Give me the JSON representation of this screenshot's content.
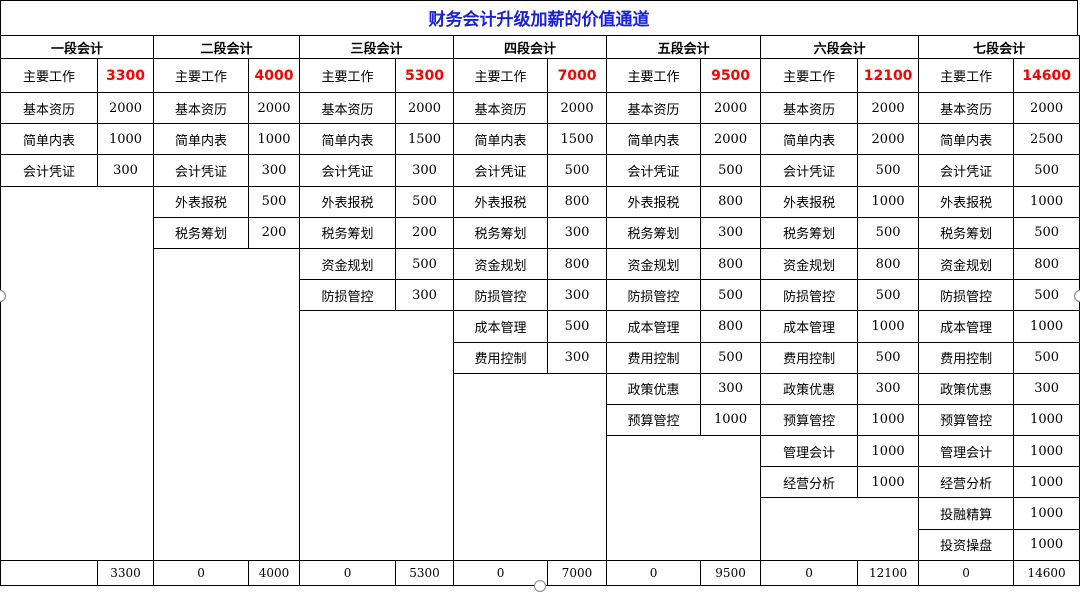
{
  "title": "财务会计升级加薪的价值通道",
  "main_label": "主要工作",
  "colors": {
    "title": "#1a22d8",
    "highlight": "#ff0000"
  },
  "groups": [
    {
      "name": "一段会计",
      "main": "3300",
      "items": [
        [
          "基本资历",
          "2000"
        ],
        [
          "简单内表",
          "1000"
        ],
        [
          "会计凭证",
          "300"
        ]
      ],
      "total_left": "",
      "total": "3300"
    },
    {
      "name": "二段会计",
      "main": "4000",
      "items": [
        [
          "基本资历",
          "2000"
        ],
        [
          "简单内表",
          "1000"
        ],
        [
          "会计凭证",
          "300"
        ],
        [
          "外表报税",
          "500"
        ],
        [
          "税务筹划",
          "200"
        ]
      ],
      "total_left": "0",
      "total": "4000"
    },
    {
      "name": "三段会计",
      "main": "5300",
      "items": [
        [
          "基本资历",
          "2000"
        ],
        [
          "简单内表",
          "1500"
        ],
        [
          "会计凭证",
          "300"
        ],
        [
          "外表报税",
          "500"
        ],
        [
          "税务筹划",
          "200"
        ],
        [
          "资金规划",
          "500"
        ],
        [
          "防损管控",
          "300"
        ]
      ],
      "total_left": "0",
      "total": "5300"
    },
    {
      "name": "四段会计",
      "main": "7000",
      "items": [
        [
          "基本资历",
          "2000"
        ],
        [
          "简单内表",
          "1500"
        ],
        [
          "会计凭证",
          "500"
        ],
        [
          "外表报税",
          "800"
        ],
        [
          "税务筹划",
          "300"
        ],
        [
          "资金规划",
          "800"
        ],
        [
          "防损管控",
          "300"
        ],
        [
          "成本管理",
          "500"
        ],
        [
          "费用控制",
          "300"
        ]
      ],
      "total_left": "0",
      "total": "7000"
    },
    {
      "name": "五段会计",
      "main": "9500",
      "items": [
        [
          "基本资历",
          "2000"
        ],
        [
          "简单内表",
          "2000"
        ],
        [
          "会计凭证",
          "500"
        ],
        [
          "外表报税",
          "800"
        ],
        [
          "税务筹划",
          "300"
        ],
        [
          "资金规划",
          "800"
        ],
        [
          "防损管控",
          "500"
        ],
        [
          "成本管理",
          "800"
        ],
        [
          "费用控制",
          "500"
        ],
        [
          "政策优惠",
          "300"
        ],
        [
          "预算管控",
          "1000"
        ]
      ],
      "total_left": "0",
      "total": "9500"
    },
    {
      "name": "六段会计",
      "main": "12100",
      "items": [
        [
          "基本资历",
          "2000"
        ],
        [
          "简单内表",
          "2000"
        ],
        [
          "会计凭证",
          "500"
        ],
        [
          "外表报税",
          "1000"
        ],
        [
          "税务筹划",
          "500"
        ],
        [
          "资金规划",
          "800"
        ],
        [
          "防损管控",
          "500"
        ],
        [
          "成本管理",
          "1000"
        ],
        [
          "费用控制",
          "500"
        ],
        [
          "政策优惠",
          "300"
        ],
        [
          "预算管控",
          "1000"
        ],
        [
          "管理会计",
          "1000"
        ],
        [
          "经营分析",
          "1000"
        ]
      ],
      "total_left": "0",
      "total": "12100"
    },
    {
      "name": "七段会计",
      "main": "14600",
      "items": [
        [
          "基本资历",
          "2000"
        ],
        [
          "简单内表",
          "2500"
        ],
        [
          "会计凭证",
          "500"
        ],
        [
          "外表报税",
          "1000"
        ],
        [
          "税务筹划",
          "500"
        ],
        [
          "资金规划",
          "800"
        ],
        [
          "防损管控",
          "500"
        ],
        [
          "成本管理",
          "1000"
        ],
        [
          "费用控制",
          "500"
        ],
        [
          "政策优惠",
          "300"
        ],
        [
          "预算管控",
          "1000"
        ],
        [
          "管理会计",
          "1000"
        ],
        [
          "经营分析",
          "1000"
        ],
        [
          "投融精算",
          "1000"
        ],
        [
          "投资操盘",
          "1000"
        ]
      ],
      "total_left": "0",
      "total": "14600"
    }
  ]
}
